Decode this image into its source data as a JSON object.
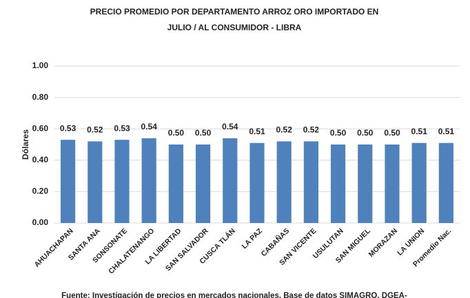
{
  "chart_data": {
    "type": "bar",
    "title": "PRECIO PROMEDIO POR DEPARTAMENTO ARROZ ORO IMPORTADO EN",
    "subtitle": "JULIO / AL CONSUMIDOR - LIBRA",
    "ylabel": "Dólares",
    "source": "Fuente: Investigación de precios en mercados nacionales. Base de datos SIMAGRO, DGEA-",
    "categories": [
      "AHUACHAPAN",
      "SANTA ANA",
      "SONSONATE",
      "CHALATENANGO",
      "LA LIBERTAD",
      "SAN SALVADOR",
      "CUSCA TLÁN",
      "LA PAZ",
      "CABAÑAS",
      "SAN VICENTE",
      "USULUTAN",
      "SAN MIGUEL",
      "MORAZAN",
      "LA UNION",
      "Promedio Nac."
    ],
    "values": [
      0.53,
      0.52,
      0.53,
      0.54,
      0.5,
      0.5,
      0.54,
      0.51,
      0.52,
      0.52,
      0.5,
      0.5,
      0.5,
      0.51,
      0.51
    ],
    "value_labels": [
      "0.53",
      "0.52",
      "0.53",
      "0.54",
      "0.50",
      "0.50",
      "0.54",
      "0.51",
      "0.52",
      "0.52",
      "0.50",
      "0.50",
      "0.50",
      "0.51",
      "0.51"
    ],
    "color": "#4f81bd",
    "ylim": [
      0,
      1
    ],
    "yticks": [
      {
        "value": 0,
        "label": "0.00"
      },
      {
        "value": 0.2,
        "label": "0.20"
      },
      {
        "value": 0.4,
        "label": "0.40"
      },
      {
        "value": 0.6,
        "label": "0.60"
      },
      {
        "value": 0.8,
        "label": "0.80"
      },
      {
        "value": 1,
        "label": "1.00"
      }
    ],
    "grid": true
  }
}
